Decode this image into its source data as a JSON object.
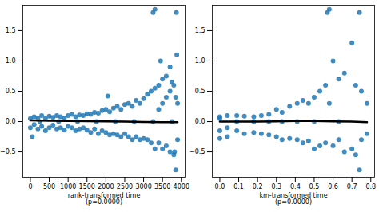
{
  "chart_data": [
    {
      "type": "scatter",
      "xlabel": "rank-transformed time\n(p=0.0000)",
      "xlim": [
        -200,
        4100
      ],
      "ylim": [
        -0.92,
        1.92
      ],
      "xticks": [
        0,
        500,
        1000,
        1500,
        2000,
        2500,
        3000,
        3500,
        4000
      ],
      "yticks": [
        {
          "value": -0.5,
          "label": "−0.5"
        },
        {
          "value": 0,
          "label": "0.0"
        },
        0.5,
        {
          "value": 1,
          "label": "1.0"
        },
        1.5
      ],
      "grid": false,
      "series": [
        {
          "type": "scatter",
          "color": "#1f77b4",
          "marker": "circle",
          "x": [
            0,
            0,
            50,
            100,
            100,
            200,
            200,
            250,
            300,
            300,
            400,
            400,
            500,
            500,
            600,
            600,
            700,
            700,
            750,
            800,
            800,
            900,
            900,
            1000,
            1000,
            1100,
            1100,
            1200,
            1200,
            1250,
            1300,
            1300,
            1400,
            1400,
            1500,
            1500,
            1600,
            1600,
            1700,
            1700,
            1750,
            1800,
            1800,
            1900,
            1900,
            2000,
            2000,
            2050,
            2100,
            2100,
            2200,
            2200,
            2250,
            2300,
            2300,
            2400,
            2400,
            2500,
            2500,
            2600,
            2600,
            2700,
            2700,
            2750,
            2800,
            2800,
            2900,
            2900,
            3000,
            3000,
            3100,
            3100,
            3200,
            3200,
            3250,
            3250,
            3300,
            3300,
            3300,
            3400,
            3400,
            3400,
            3450,
            3500,
            3500,
            3500,
            3600,
            3600,
            3600,
            3700,
            3700,
            3700,
            3750,
            3750,
            3800,
            3800,
            3820,
            3850,
            3850,
            3870,
            3880,
            3900,
            3900
          ],
          "values": [
            0.05,
            -0.1,
            -0.25,
            0.08,
            -0.05,
            0.06,
            -0.12,
            0.0,
            0.1,
            -0.08,
            0.05,
            -0.15,
            0.09,
            -0.1,
            0.07,
            -0.06,
            0.1,
            -0.12,
            0.0,
            0.08,
            -0.1,
            0.06,
            -0.14,
            0.1,
            -0.08,
            0.12,
            -0.1,
            0.08,
            -0.15,
            0.0,
            0.11,
            -0.12,
            0.1,
            -0.1,
            0.13,
            -0.14,
            0.12,
            -0.18,
            0.15,
            -0.12,
            0.0,
            0.14,
            -0.2,
            0.18,
            -0.15,
            0.2,
            -0.18,
            0.42,
            0.16,
            -0.22,
            0.22,
            -0.2,
            0.0,
            0.25,
            -0.22,
            0.2,
            -0.25,
            0.28,
            -0.2,
            0.3,
            -0.25,
            0.25,
            -0.3,
            0.0,
            0.35,
            -0.25,
            0.3,
            -0.3,
            0.38,
            -0.28,
            0.45,
            -0.3,
            0.5,
            -0.35,
            1.8,
            0.0,
            1.85,
            0.55,
            -0.45,
            0.6,
            -0.35,
            0.2,
            1.0,
            0.7,
            -0.45,
            0.3,
            0.75,
            -0.4,
            0.4,
            0.9,
            -0.5,
            0.5,
            0.65,
            0.0,
            -0.55,
            0.6,
            -0.5,
            -0.8,
            0.4,
            1.8,
            1.1,
            0.3,
            -0.3
          ]
        },
        {
          "type": "line",
          "color": "#000000",
          "x": [
            0,
            500,
            1000,
            1500,
            2000,
            2500,
            3000,
            3500,
            3900
          ],
          "values": [
            0.02,
            0.015,
            0.01,
            0.008,
            0.005,
            0.0,
            -0.005,
            -0.01,
            -0.01
          ]
        }
      ]
    },
    {
      "type": "scatter",
      "xlabel": "km-transformed time\n(p=0.0000)",
      "xlim": [
        -0.04,
        0.82
      ],
      "ylim": [
        -0.92,
        1.92
      ],
      "xticks": [
        {
          "value": 0,
          "label": "0.0"
        },
        0.1,
        0.2,
        0.3,
        0.4,
        0.5,
        0.6,
        0.7,
        0.8
      ],
      "yticks": [
        {
          "value": -0.5,
          "label": "−0.5"
        },
        {
          "value": 0,
          "label": "0.0"
        },
        0.5,
        {
          "value": 1,
          "label": "1.0"
        },
        1.5
      ],
      "grid": false,
      "series": [
        {
          "type": "scatter",
          "color": "#1f77b4",
          "marker": "circle",
          "x": [
            0,
            0,
            0,
            0,
            0.04,
            0.04,
            0.04,
            0.09,
            0.09,
            0.09,
            0.13,
            0.13,
            0.18,
            0.18,
            0.18,
            0.22,
            0.22,
            0.26,
            0.26,
            0.26,
            0.3,
            0.3,
            0.33,
            0.33,
            0.33,
            0.37,
            0.37,
            0.41,
            0.41,
            0.41,
            0.44,
            0.44,
            0.47,
            0.47,
            0.5,
            0.5,
            0.5,
            0.53,
            0.53,
            0.56,
            0.56,
            0.57,
            0.58,
            0.58,
            0.6,
            0.6,
            0.63,
            0.63,
            0.63,
            0.66,
            0.66,
            0.7,
            0.7,
            0.72,
            0.72,
            0.74,
            0.74,
            0.75,
            0.75,
            0.78,
            0.78
          ],
          "values": [
            0.05,
            -0.28,
            -0.15,
            0.08,
            0.1,
            -0.25,
            -0.1,
            0.1,
            -0.15,
            0.0,
            0.09,
            -0.2,
            0.08,
            -0.18,
            0.0,
            0.1,
            -0.2,
            0.12,
            -0.22,
            0.0,
            0.2,
            -0.25,
            0.15,
            -0.3,
            0.0,
            0.25,
            -0.28,
            0.3,
            -0.3,
            0.0,
            0.35,
            -0.35,
            0.3,
            -0.32,
            0.4,
            -0.45,
            0.0,
            0.5,
            -0.4,
            0.6,
            -0.35,
            1.8,
            1.85,
            0.3,
            1.0,
            -0.4,
            0.7,
            -0.3,
            0.0,
            0.8,
            -0.5,
            1.3,
            -0.45,
            0.6,
            -0.55,
            1.8,
            -0.8,
            0.5,
            -0.3,
            0.3,
            -0.2
          ]
        },
        {
          "type": "line",
          "color": "#000000",
          "x": [
            0,
            0.1,
            0.2,
            0.3,
            0.4,
            0.5,
            0.6,
            0.7,
            0.78
          ],
          "values": [
            0.0,
            0.0,
            0.0,
            0.005,
            0.01,
            0.01,
            0.005,
            0.0,
            -0.01
          ]
        }
      ]
    }
  ]
}
